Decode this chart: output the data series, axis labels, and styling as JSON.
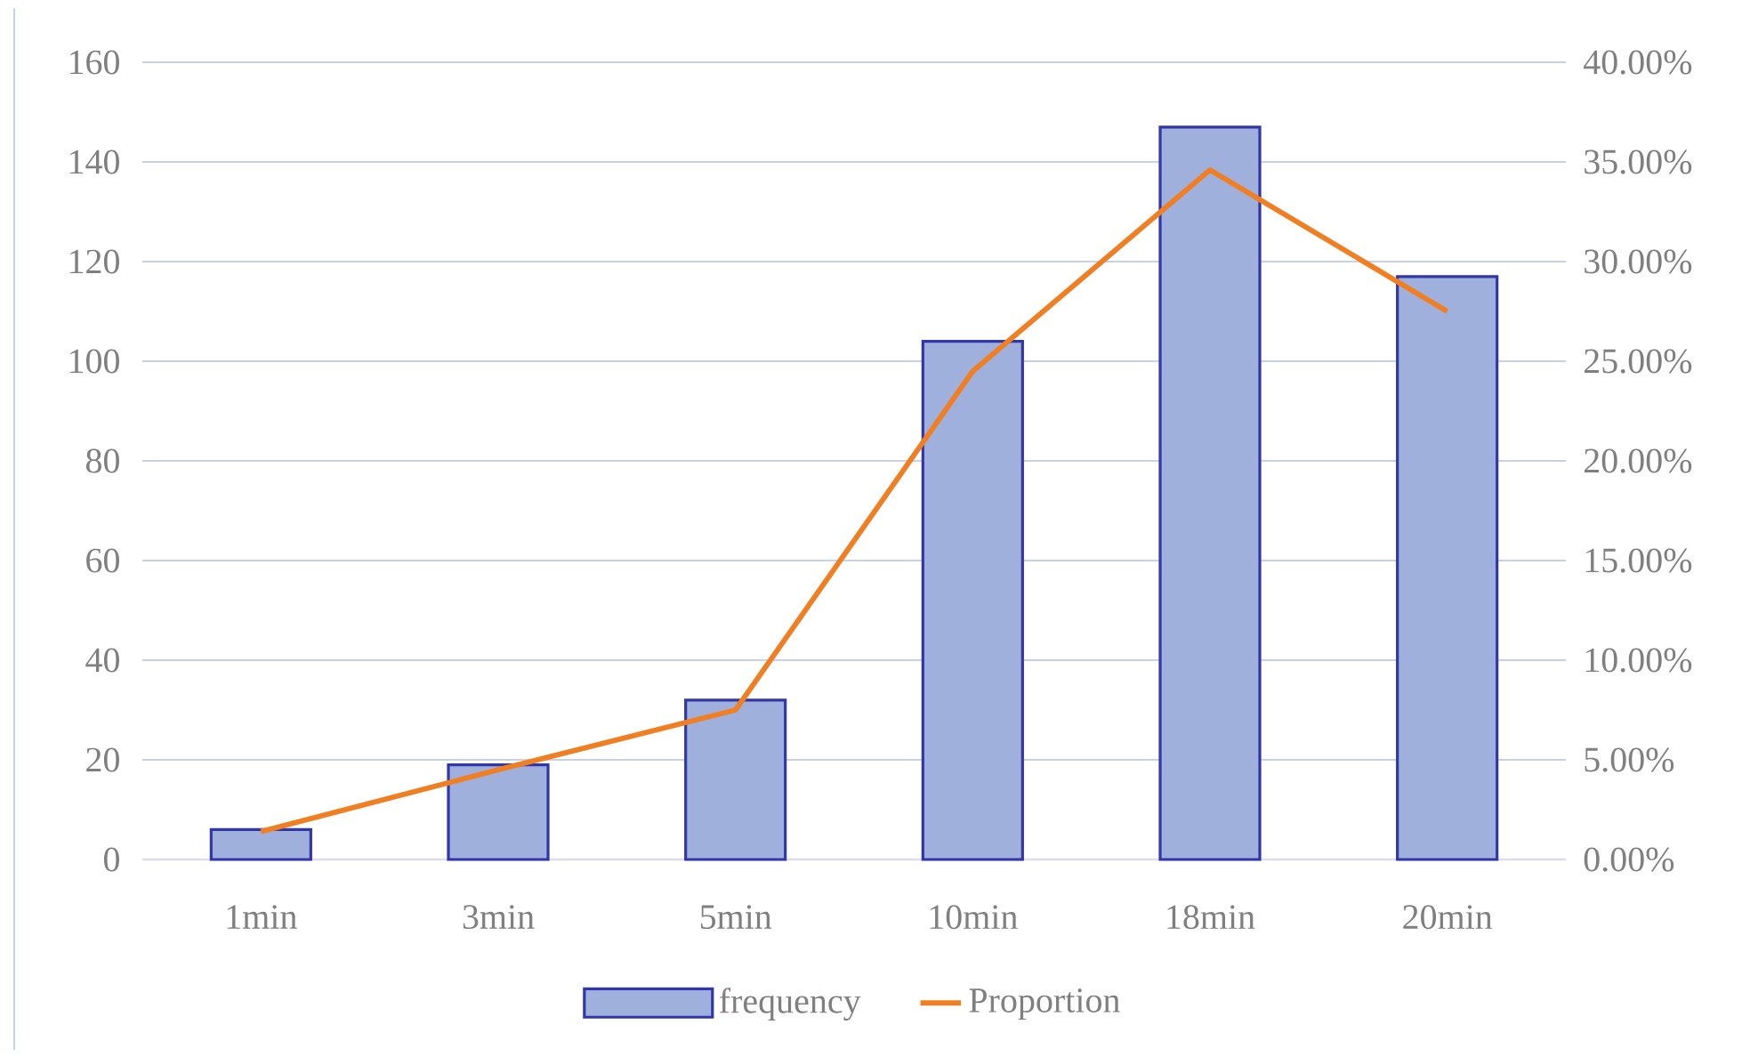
{
  "chart_data": {
    "type": "bar",
    "categories": [
      "1min",
      "3min",
      "5min",
      "10min",
      "18min",
      "20min"
    ],
    "series": [
      {
        "name": "frequency",
        "color": "#9fb0dc",
        "values": [
          6,
          19,
          32,
          104,
          147,
          117
        ]
      },
      {
        "name": "Proportion",
        "type": "line",
        "axis": "y2",
        "color": "#f07f24",
        "values": [
          1.4,
          4.5,
          7.5,
          24.5,
          34.6,
          27.5
        ]
      }
    ],
    "ylim": [
      0,
      160
    ],
    "yticks": [
      0,
      20,
      40,
      60,
      80,
      100,
      120,
      140,
      160
    ],
    "y2lim": [
      0,
      40
    ],
    "y2ticks": [
      {
        "value": 0,
        "label": "0.00%"
      },
      {
        "value": 5,
        "label": "5.00%"
      },
      {
        "value": 10,
        "label": "10.00%"
      },
      {
        "value": 15,
        "label": "15.00%"
      },
      {
        "value": 20,
        "label": "20.00%"
      },
      {
        "value": 25,
        "label": "25.00%"
      },
      {
        "value": 30,
        "label": "30.00%"
      },
      {
        "value": 35,
        "label": "35.00%"
      },
      {
        "value": 40,
        "label": "40.00%"
      }
    ],
    "grid": "y",
    "legend": "bottom"
  }
}
